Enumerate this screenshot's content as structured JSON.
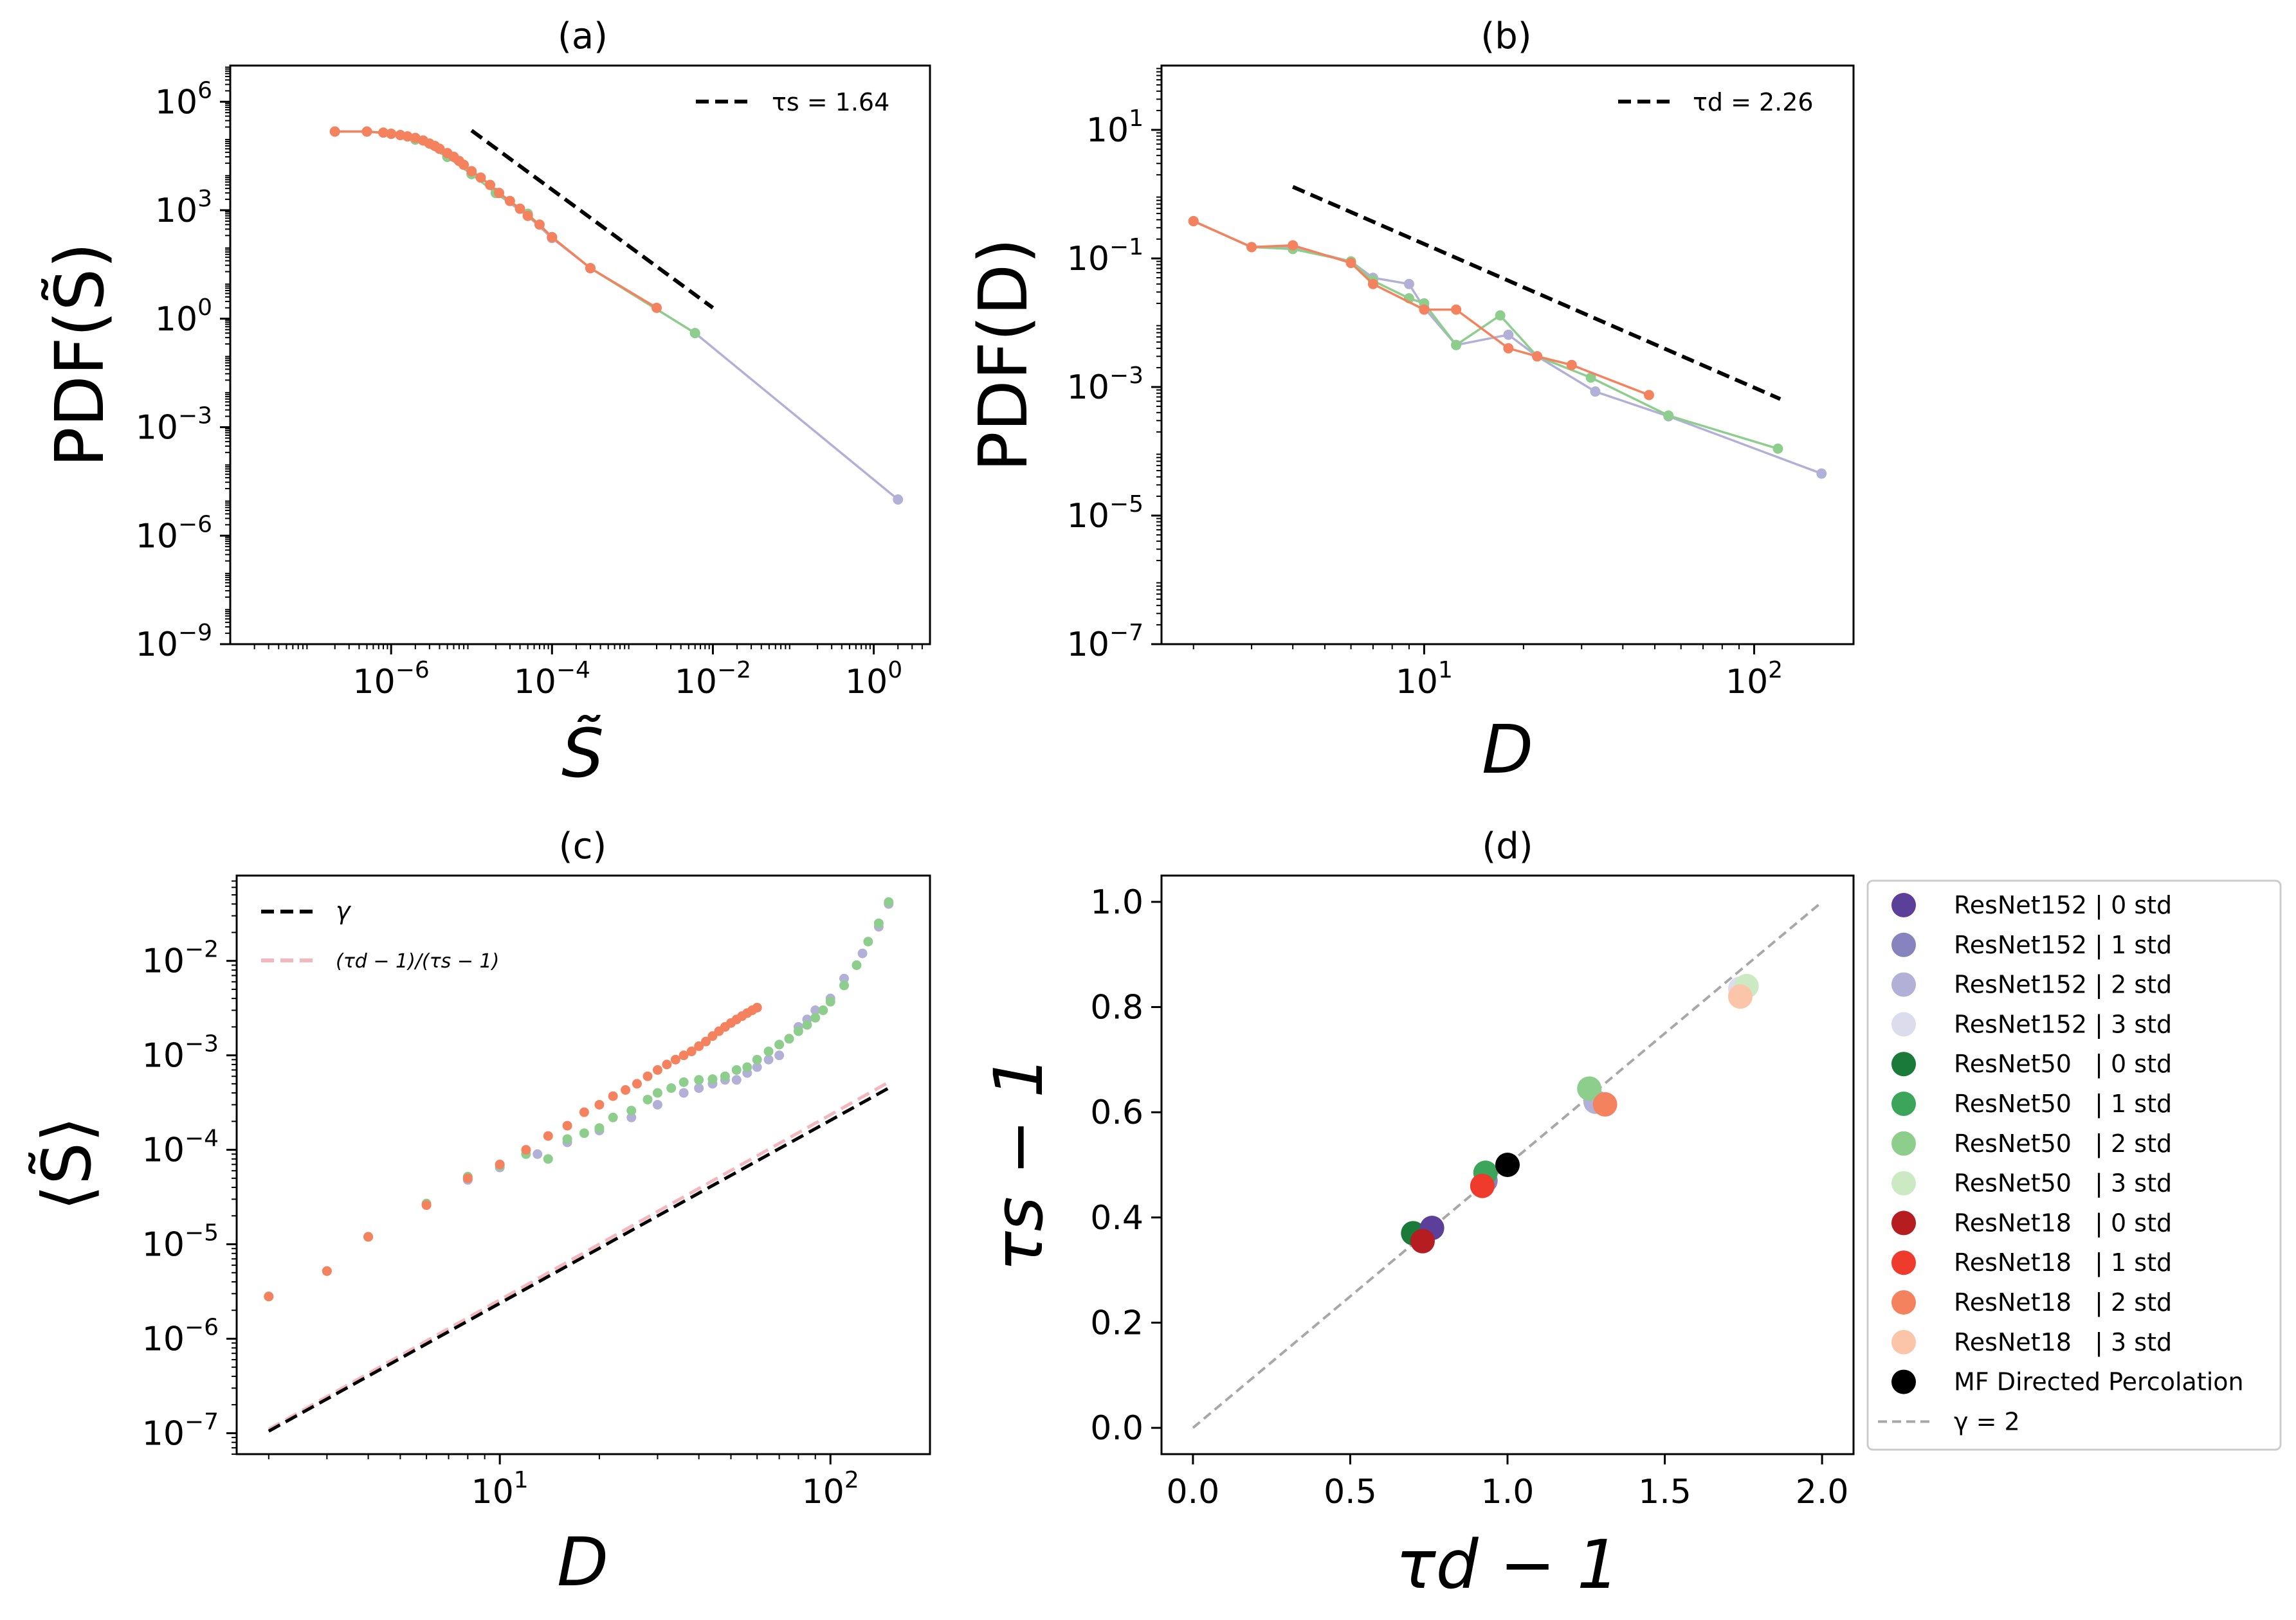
{
  "colors": {
    "ResNet152": [
      "#5b3f99",
      "#8683bf",
      "#b3b0d7",
      "#dddcec"
    ],
    "ResNet50": [
      "#197a3a",
      "#3ba55b",
      "#8dce8d",
      "#cbeac4"
    ],
    "ResNet18": [
      "#b51d20",
      "#ef3b2c",
      "#f4825e",
      "#fbc5a9"
    ],
    "mf": "#000000",
    "diag": "#a8a8a8",
    "pink": "#f4b7bd"
  },
  "chart_data": [
    {
      "id": "a",
      "type": "line",
      "title": "(a)",
      "xlabel": "S̃",
      "ylabel": "PDF(S̃)",
      "xscale": "log",
      "yscale": "log",
      "xlim": [
        1e-08,
        5.0
      ],
      "ylim": [
        1e-09,
        10000000.0
      ],
      "xticks": [
        {
          "v": 1e-06,
          "b": "10",
          "e": "−6"
        },
        {
          "v": 0.0001,
          "b": "10",
          "e": "−4"
        },
        {
          "v": 0.01,
          "b": "10",
          "e": "−2"
        },
        {
          "v": 1,
          "b": "10",
          "e": "0"
        }
      ],
      "yticks": [
        {
          "v": 1e-09,
          "b": "10",
          "e": "−9"
        },
        {
          "v": 1e-06,
          "b": "10",
          "e": "−6"
        },
        {
          "v": 0.001,
          "b": "10",
          "e": "−3"
        },
        {
          "v": 1,
          "b": "10",
          "e": "0"
        },
        {
          "v": 1000.0,
          "b": "10",
          "e": "3"
        },
        {
          "v": 1000000.0,
          "b": "10",
          "e": "6"
        }
      ],
      "legend": {
        "position": "top-right",
        "entries": [
          {
            "label": "τs =  1.64",
            "style": "black-dashed"
          }
        ]
      },
      "fit_line": {
        "x": [
          1e-05,
          0.01
        ],
        "y": [
          160000.0,
          2.0
        ],
        "color": "#000000",
        "style": "dashed"
      },
      "series": [
        {
          "color": "#b3b0d7",
          "x": [
            2e-07,
            5e-07,
            1e-06,
            2e-06,
            5e-06,
            1e-05,
            2e-05,
            5e-05,
            0.0001,
            0.0003,
            0.006,
            2.0
          ],
          "y": [
            150000.0,
            150000.0,
            130000.0,
            90000.0,
            30000.0,
            10000.0,
            3000.0,
            700.0,
            170.0,
            25.0,
            0.4,
            1e-05
          ]
        },
        {
          "color": "#8dce8d",
          "x": [
            2e-07,
            5e-07,
            1e-06,
            2e-06,
            5e-06,
            1e-05,
            2e-05,
            5e-05,
            0.0001,
            0.0003,
            0.006
          ],
          "y": [
            150000.0,
            150000.0,
            130000.0,
            90000.0,
            30000.0,
            10000.0,
            3000.0,
            800.0,
            180.0,
            25.0,
            0.4
          ]
        },
        {
          "color": "#f4825e",
          "x": [
            2e-07,
            5e-07,
            8e-07,
            1e-06,
            1.3e-06,
            1.6e-06,
            2e-06,
            2.5e-06,
            3e-06,
            3.5e-06,
            4e-06,
            5e-06,
            6e-06,
            7e-06,
            8e-06,
            1e-05,
            1.3e-05,
            1.7e-05,
            2.2e-05,
            3e-05,
            4e-05,
            5e-05,
            7e-05,
            0.0001,
            0.0003,
            0.002
          ],
          "y": [
            150000.0,
            150000.0,
            140000.0,
            130000.0,
            120000.0,
            110000.0,
            100000.0,
            85000.0,
            70000.0,
            60000.0,
            50000.0,
            38000.0,
            30000.0,
            23000.0,
            18000.0,
            12000.0,
            8000.0,
            5000.0,
            3000.0,
            1800.0,
            1100.0,
            700.0,
            400.0,
            180.0,
            25.0,
            2.0
          ]
        }
      ]
    },
    {
      "id": "b",
      "type": "line",
      "title": "(b)",
      "xlabel": "D",
      "ylabel": "PDF(D)",
      "xscale": "log",
      "yscale": "log",
      "xlim": [
        1.6,
        200
      ],
      "ylim": [
        1e-07,
        100
      ],
      "xticks": [
        {
          "v": 10,
          "b": "10",
          "e": "1"
        },
        {
          "v": 100,
          "b": "10",
          "e": "2"
        }
      ],
      "yticks": [
        {
          "v": 1e-07,
          "b": "10",
          "e": "−7"
        },
        {
          "v": 1e-05,
          "b": "10",
          "e": "−5"
        },
        {
          "v": 0.001,
          "b": "10",
          "e": "−3"
        },
        {
          "v": 0.1,
          "b": "10",
          "e": "−1"
        },
        {
          "v": 10,
          "b": "10",
          "e": "1"
        }
      ],
      "legend": {
        "position": "top-right",
        "entries": [
          {
            "label": "τd =  2.26",
            "style": "black-dashed"
          }
        ]
      },
      "fit_line": {
        "x": [
          4,
          120
        ],
        "y": [
          1.3,
          0.00065
        ],
        "color": "#000000",
        "style": "dashed"
      },
      "series": [
        {
          "color": "#b3b0d7",
          "x": [
            2,
            3,
            4,
            6,
            7,
            9,
            10,
            12.5,
            18,
            22,
            33,
            55,
            160
          ],
          "y": [
            0.38,
            0.15,
            0.15,
            0.09,
            0.05,
            0.04,
            0.017,
            0.0045,
            0.0065,
            0.003,
            0.00085,
            0.00035,
            4.5e-05
          ]
        },
        {
          "color": "#8dce8d",
          "x": [
            2,
            3,
            4,
            6,
            7,
            9,
            10,
            12.5,
            17,
            22,
            32,
            55,
            118
          ],
          "y": [
            0.38,
            0.15,
            0.14,
            0.09,
            0.045,
            0.024,
            0.02,
            0.0045,
            0.013,
            0.003,
            0.0014,
            0.00036,
            0.00011
          ]
        },
        {
          "color": "#f4825e",
          "x": [
            2,
            3,
            4,
            6,
            7,
            10,
            12.5,
            18,
            22,
            28,
            48
          ],
          "y": [
            0.38,
            0.15,
            0.16,
            0.085,
            0.04,
            0.016,
            0.016,
            0.004,
            0.003,
            0.0022,
            0.00075
          ]
        }
      ]
    },
    {
      "id": "c",
      "type": "scatter",
      "title": "(c)",
      "xlabel": "D",
      "ylabel": "⟨S̃⟩",
      "xscale": "log",
      "yscale": "log",
      "xlim": [
        1.6,
        200
      ],
      "ylim": [
        6e-08,
        0.08
      ],
      "xticks": [
        {
          "v": 10,
          "b": "10",
          "e": "1"
        },
        {
          "v": 100,
          "b": "10",
          "e": "2"
        }
      ],
      "yticks": [
        {
          "v": 1e-07,
          "b": "10",
          "e": "−7"
        },
        {
          "v": 1e-06,
          "b": "10",
          "e": "−6"
        },
        {
          "v": 1e-05,
          "b": "10",
          "e": "−5"
        },
        {
          "v": 0.0001,
          "b": "10",
          "e": "−4"
        },
        {
          "v": 0.001,
          "b": "10",
          "e": "−3"
        },
        {
          "v": 0.01,
          "b": "10",
          "e": "−2"
        }
      ],
      "legend": {
        "position": "top-left",
        "entries": [
          {
            "label": "γ",
            "style": "black-dashed"
          },
          {
            "label": "(τd − 1)/(τs − 1)",
            "style": "pink-dashed"
          }
        ]
      },
      "lines": [
        {
          "name": "γ",
          "color": "#000000",
          "x": [
            2,
            150
          ],
          "y": [
            1.05e-07,
            0.00045
          ]
        },
        {
          "name": "(τd − 1)/(τs − 1)",
          "color": "#f4b7bd",
          "x": [
            2,
            150
          ],
          "y": [
            1.1e-07,
            0.00052
          ]
        }
      ],
      "series": [
        {
          "color": "#b3b0d7",
          "x": [
            2,
            3,
            4,
            6,
            8,
            10,
            13,
            16,
            20,
            25,
            30,
            36,
            40,
            44,
            48,
            52,
            56,
            60,
            65,
            70,
            75,
            80,
            85,
            90,
            100,
            110,
            125,
            140,
            150
          ],
          "y": [
            2.8e-06,
            5.2e-06,
            1.2e-05,
            2.6e-05,
            4.8e-05,
            6.5e-05,
            9e-05,
            0.00012,
            0.00016,
            0.00022,
            0.0003,
            0.0004,
            0.00045,
            0.0005,
            0.00055,
            0.00055,
            0.00065,
            0.00075,
            0.0009,
            0.001,
            0.0015,
            0.002,
            0.0024,
            0.003,
            0.004,
            0.0065,
            0.012,
            0.023,
            0.04
          ]
        },
        {
          "color": "#8dce8d",
          "x": [
            2,
            3,
            4,
            6,
            8,
            10,
            12,
            14,
            16,
            18,
            20,
            22,
            25,
            28,
            30,
            33,
            36,
            40,
            44,
            48,
            52,
            56,
            60,
            65,
            70,
            75,
            80,
            85,
            90,
            95,
            100,
            110,
            120,
            130,
            140,
            150
          ],
          "y": [
            2.8e-06,
            5.2e-06,
            1.2e-05,
            2.7e-05,
            5.2e-05,
            6.8e-05,
            9e-05,
            8e-05,
            0.00013,
            0.00015,
            0.00017,
            0.00022,
            0.00026,
            0.00034,
            0.0004,
            0.00045,
            0.00052,
            0.00055,
            0.00056,
            0.0006,
            0.0007,
            0.00075,
            0.0009,
            0.0011,
            0.0013,
            0.0015,
            0.0018,
            0.0021,
            0.0025,
            0.003,
            0.0037,
            0.0055,
            0.009,
            0.016,
            0.025,
            0.042
          ]
        },
        {
          "color": "#f4825e",
          "x": [
            2,
            3,
            4,
            6,
            8,
            10,
            12,
            14,
            16,
            18,
            20,
            22,
            24,
            26,
            28,
            30,
            32,
            34,
            36,
            38,
            40,
            42,
            44,
            46,
            48,
            50,
            52,
            54,
            56,
            58,
            60
          ],
          "y": [
            2.8e-06,
            5.2e-06,
            1.2e-05,
            2.6e-05,
            5e-05,
            7e-05,
            0.0001,
            0.00014,
            0.00018,
            0.00025,
            0.0003,
            0.00037,
            0.00043,
            0.0005,
            0.0006,
            0.0007,
            0.0008,
            0.0009,
            0.001,
            0.0011,
            0.00125,
            0.0014,
            0.0016,
            0.0018,
            0.002,
            0.0022,
            0.0024,
            0.0026,
            0.0028,
            0.003,
            0.0032
          ]
        }
      ]
    },
    {
      "id": "d",
      "type": "scatter",
      "title": "(d)",
      "xlabel": "τd − 1",
      "ylabel": "τs − 1",
      "xscale": "linear",
      "yscale": "linear",
      "xlim": [
        -0.1,
        2.1
      ],
      "ylim": [
        -0.05,
        1.05
      ],
      "xticks": [
        {
          "v": 0.0,
          "t": "0.0"
        },
        {
          "v": 0.5,
          "t": "0.5"
        },
        {
          "v": 1.0,
          "t": "1.0"
        },
        {
          "v": 1.5,
          "t": "1.5"
        },
        {
          "v": 2.0,
          "t": "2.0"
        }
      ],
      "yticks": [
        {
          "v": 0.0,
          "t": "0.0"
        },
        {
          "v": 0.2,
          "t": "0.2"
        },
        {
          "v": 0.4,
          "t": "0.4"
        },
        {
          "v": 0.6,
          "t": "0.6"
        },
        {
          "v": 0.8,
          "t": "0.8"
        },
        {
          "v": 1.0,
          "t": "1.0"
        }
      ],
      "diagonal": {
        "x": [
          0,
          2
        ],
        "y": [
          0,
          1
        ],
        "color": "#a8a8a8"
      },
      "points": [
        {
          "name": "ResNet152 | 3 std",
          "color": "#dddcec",
          "x": 1.74,
          "y": 0.835
        },
        {
          "name": "ResNet50   | 3 std",
          "color": "#cbeac4",
          "x": 1.76,
          "y": 0.84
        },
        {
          "name": "ResNet18   | 3 std",
          "color": "#fbc5a9",
          "x": 1.74,
          "y": 0.82
        },
        {
          "name": "ResNet152 | 2 std",
          "color": "#b3b0d7",
          "x": 1.28,
          "y": 0.62
        },
        {
          "name": "ResNet50   | 2 std",
          "color": "#8dce8d",
          "x": 1.26,
          "y": 0.645
        },
        {
          "name": "ResNet18   | 2 std",
          "color": "#f4825e",
          "x": 1.31,
          "y": 0.615
        },
        {
          "name": "ResNet152 | 1 std",
          "color": "#8683bf",
          "x": 0.93,
          "y": 0.47
        },
        {
          "name": "ResNet50   | 1 std",
          "color": "#3ba55b",
          "x": 0.93,
          "y": 0.485
        },
        {
          "name": "ResNet18   | 1 std",
          "color": "#ef3b2c",
          "x": 0.92,
          "y": 0.46
        },
        {
          "name": "ResNet50   | 0 std",
          "color": "#197a3a",
          "x": 0.7,
          "y": 0.37
        },
        {
          "name": "ResNet152 | 0 std",
          "color": "#5b3f99",
          "x": 0.76,
          "y": 0.38
        },
        {
          "name": "ResNet18   | 0 std",
          "color": "#b51d20",
          "x": 0.73,
          "y": 0.355
        },
        {
          "name": "MF Directed Percolation",
          "color": "#000000",
          "x": 1.0,
          "y": 0.5
        }
      ],
      "legend": {
        "position": "outside-right",
        "entries": [
          {
            "label": "ResNet152 | 0 std",
            "color": "#5b3f99",
            "marker": "dot"
          },
          {
            "label": "ResNet152 | 1 std",
            "color": "#8683bf",
            "marker": "dot"
          },
          {
            "label": "ResNet152 | 2 std",
            "color": "#b3b0d7",
            "marker": "dot"
          },
          {
            "label": "ResNet152 | 3 std",
            "color": "#dddcec",
            "marker": "dot"
          },
          {
            "label": "ResNet50   | 0 std",
            "color": "#197a3a",
            "marker": "dot"
          },
          {
            "label": "ResNet50   | 1 std",
            "color": "#3ba55b",
            "marker": "dot"
          },
          {
            "label": "ResNet50   | 2 std",
            "color": "#8dce8d",
            "marker": "dot"
          },
          {
            "label": "ResNet50   | 3 std",
            "color": "#cbeac4",
            "marker": "dot"
          },
          {
            "label": "ResNet18   | 0 std",
            "color": "#b51d20",
            "marker": "dot"
          },
          {
            "label": "ResNet18   | 1 std",
            "color": "#ef3b2c",
            "marker": "dot"
          },
          {
            "label": "ResNet18   | 2 std",
            "color": "#f4825e",
            "marker": "dot"
          },
          {
            "label": "ResNet18   | 3 std",
            "color": "#fbc5a9",
            "marker": "dot"
          },
          {
            "label": "MF Directed Percolation",
            "color": "#000000",
            "marker": "dot"
          },
          {
            "label": "γ = 2",
            "color": "#a8a8a8",
            "marker": "dashed"
          }
        ]
      }
    }
  ]
}
